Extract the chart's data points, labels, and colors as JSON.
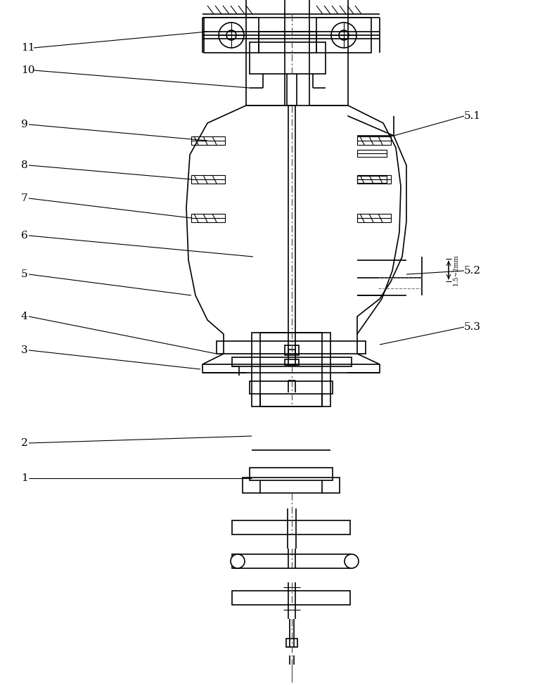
{
  "bg_color": "#ffffff",
  "lc": "#000000",
  "lw": 1.2,
  "tlw": 0.8,
  "dim_text": "1.5~2mm"
}
